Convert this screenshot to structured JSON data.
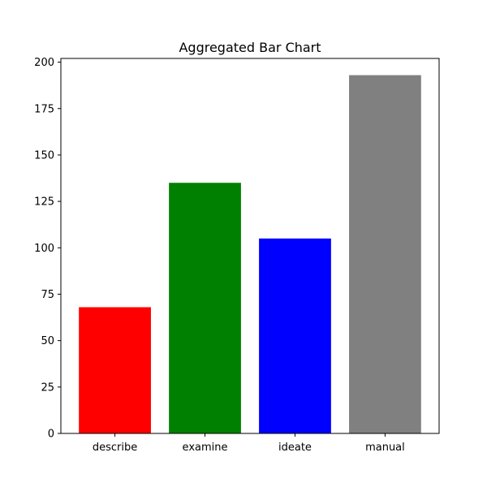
{
  "chart_data": {
    "type": "bar",
    "title": "Aggregated Bar Chart",
    "xlabel": "",
    "ylabel": "",
    "categories": [
      "describe",
      "examine",
      "ideate",
      "manual"
    ],
    "values": [
      68,
      135,
      105,
      193
    ],
    "colors": [
      "#ff0000",
      "#008000",
      "#0000ff",
      "#808080"
    ],
    "ylim": [
      0,
      202
    ],
    "yticks": [
      0,
      25,
      50,
      75,
      100,
      125,
      150,
      175,
      200
    ],
    "grid": false,
    "legend": false
  }
}
